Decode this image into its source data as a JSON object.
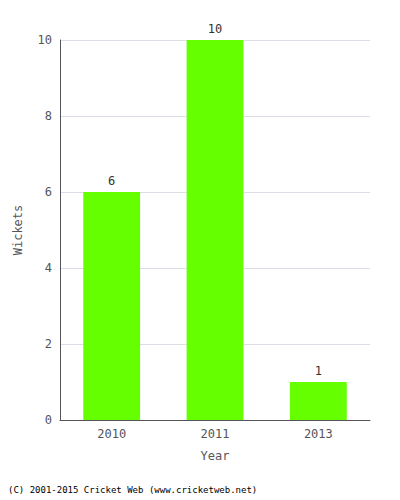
{
  "chart_data": {
    "type": "bar",
    "categories": [
      "2010",
      "2011",
      "2013"
    ],
    "values": [
      6,
      10,
      1
    ],
    "color": "#66ff00",
    "xlabel": "Year",
    "ylabel": "Wickets",
    "ylim": [
      0,
      10
    ],
    "yticks": [
      0,
      2,
      4,
      6,
      8,
      10
    ],
    "grid": true,
    "data_labels": true,
    "annotation": "(C) 2001-2015 Cricket Web (www.cricketweb.net)"
  }
}
